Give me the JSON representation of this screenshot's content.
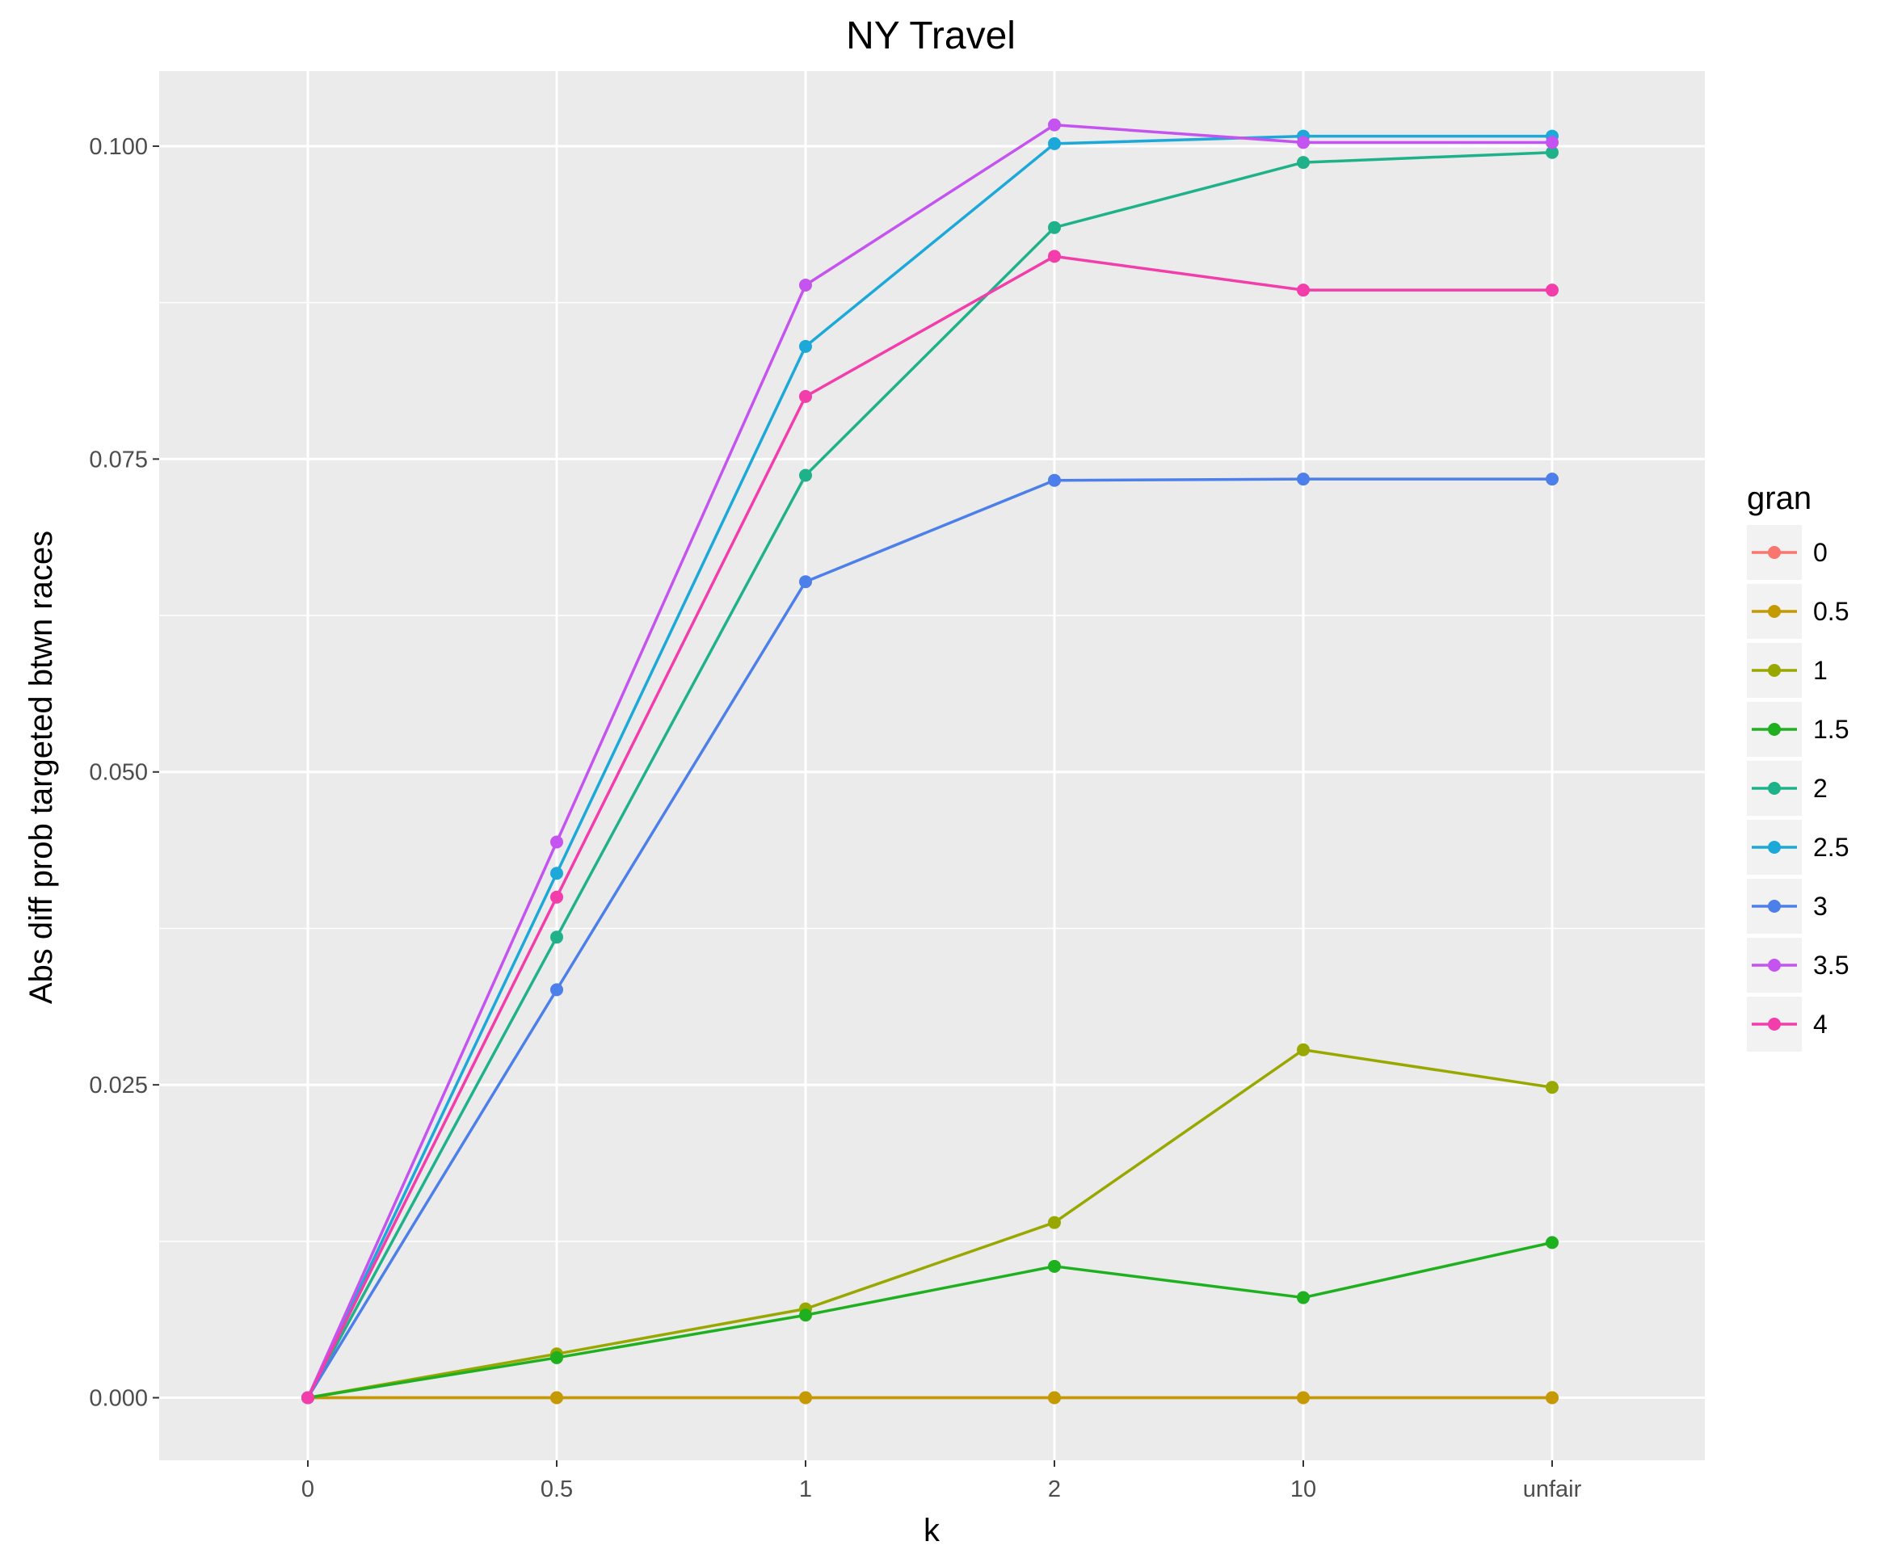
{
  "chart_data": {
    "type": "line",
    "title": "NY Travel",
    "xlabel": "k",
    "ylabel": "Abs diff prob targeted btwn races",
    "categories": [
      "0",
      "0.5",
      "1",
      "2",
      "10",
      "unfair"
    ],
    "ylim": [
      -0.005,
      0.106
    ],
    "yticks": [
      "0.000",
      "0.025",
      "0.050",
      "0.075",
      "0.100"
    ],
    "ytick_values": [
      0,
      0.025,
      0.05,
      0.075,
      0.1
    ],
    "grid": true,
    "legend": {
      "title": "gran",
      "position": "right"
    },
    "series": [
      {
        "name": "0",
        "color": "#F8766D",
        "values": [
          0,
          0,
          0,
          0,
          0,
          0
        ]
      },
      {
        "name": "0.5",
        "color": "#C49A00",
        "values": [
          0,
          0,
          0,
          0,
          0,
          0
        ]
      },
      {
        "name": "1",
        "color": "#99A800",
        "values": [
          0,
          0.0035,
          0.0071,
          0.014,
          0.0278,
          0.0248
        ]
      },
      {
        "name": "1.5",
        "color": "#1FB01F",
        "values": [
          0,
          0.0032,
          0.0066,
          0.0105,
          0.008,
          0.0124
        ]
      },
      {
        "name": "2",
        "color": "#1FB28A",
        "values": [
          0,
          0.0368,
          0.0737,
          0.0935,
          0.0987,
          0.0995
        ]
      },
      {
        "name": "2.5",
        "color": "#1CA8D8",
        "values": [
          0,
          0.0419,
          0.084,
          0.1002,
          0.1008,
          0.1008
        ]
      },
      {
        "name": "3",
        "color": "#4D7FEA",
        "values": [
          0,
          0.0326,
          0.0652,
          0.0733,
          0.0734,
          0.0734
        ]
      },
      {
        "name": "3.5",
        "color": "#C553F0",
        "values": [
          0,
          0.0444,
          0.0889,
          0.1017,
          0.1003,
          0.1003
        ]
      },
      {
        "name": "4",
        "color": "#F23DAA",
        "values": [
          0,
          0.04,
          0.08,
          0.0912,
          0.0885,
          0.0885
        ]
      }
    ]
  }
}
